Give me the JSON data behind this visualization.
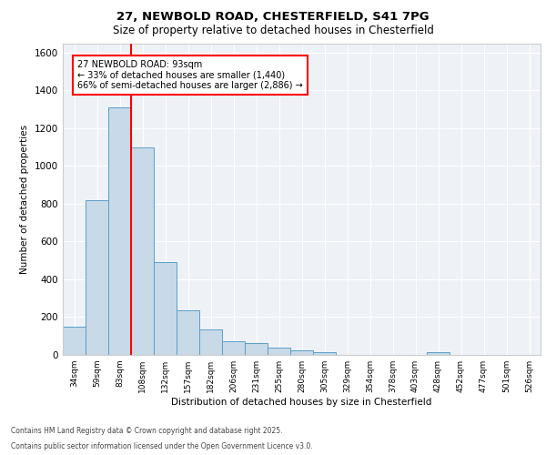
{
  "title_line1": "27, NEWBOLD ROAD, CHESTERFIELD, S41 7PG",
  "title_line2": "Size of property relative to detached houses in Chesterfield",
  "xlabel": "Distribution of detached houses by size in Chesterfield",
  "ylabel": "Number of detached properties",
  "categories": [
    "34sqm",
    "59sqm",
    "83sqm",
    "108sqm",
    "132sqm",
    "157sqm",
    "182sqm",
    "206sqm",
    "231sqm",
    "255sqm",
    "280sqm",
    "305sqm",
    "329sqm",
    "354sqm",
    "378sqm",
    "403sqm",
    "428sqm",
    "452sqm",
    "477sqm",
    "501sqm",
    "526sqm"
  ],
  "values": [
    150,
    820,
    1310,
    1100,
    490,
    235,
    135,
    70,
    65,
    40,
    25,
    15,
    0,
    0,
    0,
    0,
    15,
    0,
    0,
    0,
    0
  ],
  "bar_color": "#c8d9e8",
  "bar_edge_color": "#5a9ec9",
  "red_line_index": 2,
  "annotation_text": "27 NEWBOLD ROAD: 93sqm\n← 33% of detached houses are smaller (1,440)\n66% of semi-detached houses are larger (2,886) →",
  "annotation_box_color": "white",
  "annotation_box_edge_color": "red",
  "ylim": [
    0,
    1650
  ],
  "yticks": [
    0,
    200,
    400,
    600,
    800,
    1000,
    1200,
    1400,
    1600
  ],
  "footer_line1": "Contains HM Land Registry data © Crown copyright and database right 2025.",
  "footer_line2": "Contains public sector information licensed under the Open Government Licence v3.0.",
  "bg_color": "#eef2f7",
  "grid_color": "white"
}
